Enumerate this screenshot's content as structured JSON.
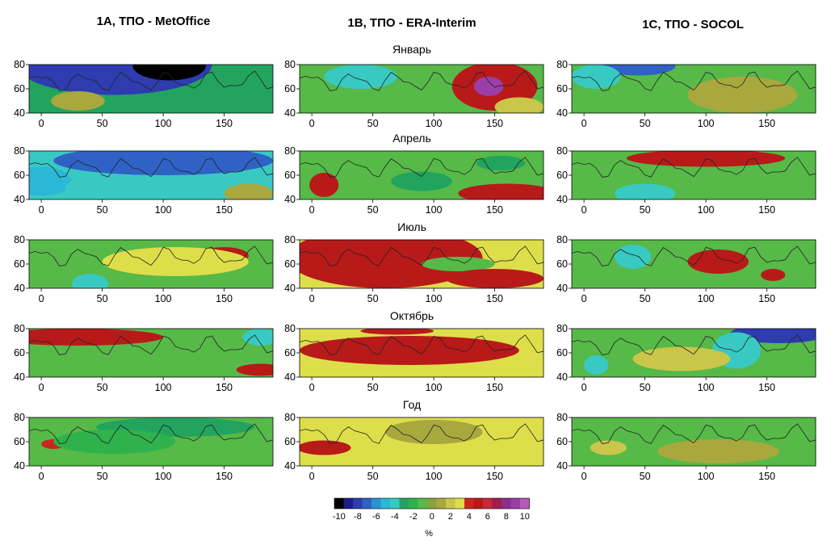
{
  "column_titles": [
    "1A, ТПО - MetOffice",
    "1B, ТПО - ERA-Interim",
    "1C, ТПО - SOCOL"
  ],
  "row_titles": [
    "Январь",
    "Апрель",
    "Июль",
    "Октябрь",
    "Год"
  ],
  "colorbar": {
    "levels": [
      -10,
      -9,
      -8,
      -7,
      -6,
      -5,
      -4,
      -3,
      -2,
      -1,
      0,
      1,
      2,
      3,
      4,
      5,
      6,
      7,
      8,
      9,
      10
    ],
    "tick_labels": [
      "-10",
      "-8",
      "-6",
      "-4",
      "-2",
      "0",
      "2",
      "4",
      "6",
      "8",
      "10"
    ],
    "colors": [
      "#000000",
      "#1c1c8a",
      "#2e3cb0",
      "#2f62c4",
      "#2a93cf",
      "#2bb8d6",
      "#39c9c3",
      "#22a45e",
      "#2fb24c",
      "#56b948",
      "#8aa23f",
      "#a8a83e",
      "#c9c64a",
      "#dede4a",
      "#c8281e",
      "#b81a1a",
      "#c42a3a",
      "#a11e4e",
      "#8e2d8e",
      "#9b3fa6",
      "#b45ab8"
    ],
    "unit": "%"
  },
  "chart_data": {
    "type": "heatmap",
    "description_axes": {
      "x_ticks": [
        0,
        50,
        100,
        150
      ],
      "y_ticks": [
        40,
        60,
        80
      ],
      "xlim": [
        -10,
        190
      ],
      "ylim": [
        40,
        80
      ]
    },
    "panels": [
      {
        "column": "1A, ТПО - MetOffice",
        "row": "Январь",
        "blobs": [
          {
            "lon": 60,
            "lat": 80,
            "rx": 80,
            "ry": 25,
            "value": -8
          },
          {
            "lon": 105,
            "lat": 79,
            "rx": 30,
            "ry": 12,
            "value": -10
          },
          {
            "lon": 30,
            "lat": 50,
            "rx": 22,
            "ry": 8,
            "value": 1
          },
          {
            "lon": 165,
            "lat": 72,
            "rx": 25,
            "ry": 10,
            "value": -3
          }
        ]
      },
      {
        "column": "1B, ТПО - ERA-Interim",
        "row": "Январь",
        "blobs": [
          {
            "lon": 150,
            "lat": 62,
            "rx": 35,
            "ry": 20,
            "value": 5
          },
          {
            "lon": 145,
            "lat": 62,
            "rx": 12,
            "ry": 8,
            "value": 9
          },
          {
            "lon": 40,
            "lat": 70,
            "rx": 30,
            "ry": 10,
            "value": -4
          },
          {
            "lon": 170,
            "lat": 45,
            "rx": 20,
            "ry": 8,
            "value": 2
          }
        ]
      },
      {
        "column": "1C, ТПО - SOCOL",
        "row": "Январь",
        "blobs": [
          {
            "lon": 45,
            "lat": 79,
            "rx": 30,
            "ry": 8,
            "value": -7
          },
          {
            "lon": 10,
            "lat": 70,
            "rx": 20,
            "ry": 10,
            "value": -4
          },
          {
            "lon": 130,
            "lat": 55,
            "rx": 45,
            "ry": 15,
            "value": 1
          }
        ]
      },
      {
        "column": "1A, ТПО - MetOffice",
        "row": "Апрель",
        "blobs": [
          {
            "lon": 100,
            "lat": 72,
            "rx": 90,
            "ry": 12,
            "value": -7
          },
          {
            "lon": 0,
            "lat": 55,
            "rx": 25,
            "ry": 12,
            "value": -5
          },
          {
            "lon": 60,
            "lat": 50,
            "rx": 40,
            "ry": 10,
            "value": -4
          },
          {
            "lon": 170,
            "lat": 45,
            "rx": 20,
            "ry": 8,
            "value": 1
          }
        ]
      },
      {
        "column": "1B, ТПО - ERA-Interim",
        "row": "Апрель",
        "blobs": [
          {
            "lon": 10,
            "lat": 52,
            "rx": 12,
            "ry": 10,
            "value": 5
          },
          {
            "lon": 160,
            "lat": 45,
            "rx": 40,
            "ry": 8,
            "value": 5
          },
          {
            "lon": 90,
            "lat": 55,
            "rx": 25,
            "ry": 8,
            "value": -3
          },
          {
            "lon": 155,
            "lat": 70,
            "rx": 20,
            "ry": 6,
            "value": -3
          }
        ]
      },
      {
        "column": "1C, ТПО - SOCOL",
        "row": "Апрель",
        "blobs": [
          {
            "lon": 100,
            "lat": 74,
            "rx": 65,
            "ry": 7,
            "value": 5
          },
          {
            "lon": 50,
            "lat": 45,
            "rx": 25,
            "ry": 8,
            "value": -4
          },
          {
            "lon": 160,
            "lat": 48,
            "rx": 25,
            "ry": 8,
            "value": -1
          }
        ]
      },
      {
        "column": "1A, ТПО - MetOffice",
        "row": "Июль",
        "blobs": [
          {
            "lon": 150,
            "lat": 67,
            "rx": 20,
            "ry": 7,
            "value": 5
          },
          {
            "lon": 40,
            "lat": 44,
            "rx": 15,
            "ry": 8,
            "value": -4
          },
          {
            "lon": 110,
            "lat": 62,
            "rx": 60,
            "ry": 12,
            "value": 3
          }
        ]
      },
      {
        "column": "1B, ТПО - ERA-Interim",
        "row": "Июль",
        "blobs": [
          {
            "lon": 60,
            "lat": 65,
            "rx": 80,
            "ry": 25,
            "value": 5
          },
          {
            "lon": 120,
            "lat": 60,
            "rx": 30,
            "ry": 6,
            "value": -1
          },
          {
            "lon": 150,
            "lat": 48,
            "rx": 40,
            "ry": 8,
            "value": 5
          }
        ]
      },
      {
        "column": "1C, ТПО - SOCOL",
        "row": "Июль",
        "blobs": [
          {
            "lon": 40,
            "lat": 66,
            "rx": 15,
            "ry": 10,
            "value": -4
          },
          {
            "lon": 110,
            "lat": 62,
            "rx": 25,
            "ry": 10,
            "value": 5
          },
          {
            "lon": 155,
            "lat": 51,
            "rx": 10,
            "ry": 5,
            "value": 5
          }
        ]
      },
      {
        "column": "1A, ТПО - MetOffice",
        "row": "Октябрь",
        "blobs": [
          {
            "lon": 30,
            "lat": 73,
            "rx": 70,
            "ry": 7,
            "value": 5
          },
          {
            "lon": 180,
            "lat": 46,
            "rx": 20,
            "ry": 5,
            "value": 5
          },
          {
            "lon": 180,
            "lat": 73,
            "rx": 15,
            "ry": 7,
            "value": -4
          }
        ]
      },
      {
        "column": "1B, ТПО - ERA-Interim",
        "row": "Октябрь",
        "blobs": [
          {
            "lon": 80,
            "lat": 62,
            "rx": 90,
            "ry": 12,
            "value": 5
          },
          {
            "lon": 70,
            "lat": 78,
            "rx": 30,
            "ry": 3,
            "value": 5
          }
        ]
      },
      {
        "column": "1C, ТПО - SOCOL",
        "row": "Октябрь",
        "blobs": [
          {
            "lon": 160,
            "lat": 76,
            "rx": 40,
            "ry": 8,
            "value": -8
          },
          {
            "lon": 125,
            "lat": 62,
            "rx": 20,
            "ry": 15,
            "value": -4
          },
          {
            "lon": 10,
            "lat": 50,
            "rx": 10,
            "ry": 8,
            "value": -4
          },
          {
            "lon": 80,
            "lat": 55,
            "rx": 40,
            "ry": 10,
            "value": 2
          }
        ]
      },
      {
        "column": "1A, ТПО - MetOffice",
        "row": "Год",
        "blobs": [
          {
            "lon": 110,
            "lat": 72,
            "rx": 65,
            "ry": 8,
            "value": -3
          },
          {
            "lon": 10,
            "lat": 58,
            "rx": 10,
            "ry": 4,
            "value": 4
          },
          {
            "lon": 60,
            "lat": 60,
            "rx": 50,
            "ry": 10,
            "value": -2
          }
        ]
      },
      {
        "column": "1B, ТПО - ERA-Interim",
        "row": "Год",
        "blobs": [
          {
            "lon": 10,
            "lat": 55,
            "rx": 22,
            "ry": 6,
            "value": 5
          },
          {
            "lon": 100,
            "lat": 68,
            "rx": 40,
            "ry": 10,
            "value": 1
          }
        ]
      },
      {
        "column": "1C, ТПО - SOCOL",
        "row": "Год",
        "blobs": [
          {
            "lon": 110,
            "lat": 52,
            "rx": 50,
            "ry": 10,
            "value": 1
          },
          {
            "lon": 20,
            "lat": 55,
            "rx": 15,
            "ry": 6,
            "value": 2
          },
          {
            "lon": 150,
            "lat": 70,
            "rx": 20,
            "ry": 6,
            "value": -1
          }
        ]
      }
    ],
    "panel_background_values": [
      [
        -3,
        -1,
        -1
      ],
      [
        -4,
        -1,
        -1
      ],
      [
        -1,
        3,
        -1
      ],
      [
        -1,
        3,
        -1
      ],
      [
        -1,
        3,
        -1
      ]
    ]
  }
}
